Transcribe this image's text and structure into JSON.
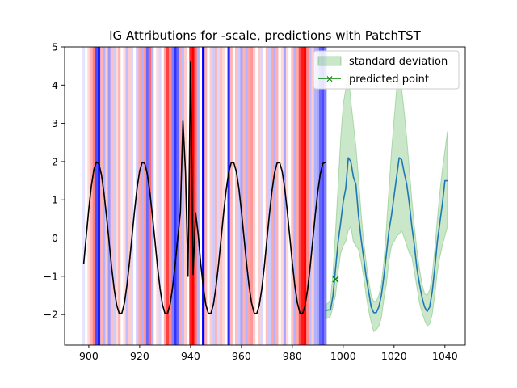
{
  "chart_data": {
    "type": "line",
    "title": "IG Attributions for -scale, predictions with PatchTST",
    "xlabel": "",
    "ylabel": "",
    "xlim": [
      890.5,
      1048
    ],
    "ylim": [
      -2.8,
      5.0
    ],
    "xticks": [
      900,
      920,
      940,
      960,
      980,
      1000,
      1020,
      1040
    ],
    "yticks": [
      -2,
      -1,
      0,
      1,
      2,
      3,
      4,
      5
    ],
    "grid": false,
    "legend_position": "top-right",
    "legend": [
      {
        "label": "standard deviation",
        "kind": "patch",
        "color": "#2ca02c"
      },
      {
        "label": "predicted point",
        "kind": "line-x",
        "color": "#008000"
      }
    ],
    "attribution_bands": [
      {
        "x": 898,
        "value": -0.1
      },
      {
        "x": 900,
        "value": 0.15
      },
      {
        "x": 901,
        "value": 0.3
      },
      {
        "x": 902,
        "value": 0.5
      },
      {
        "x": 903,
        "value": -0.7
      },
      {
        "x": 904,
        "value": -0.9
      },
      {
        "x": 905,
        "value": 0.3
      },
      {
        "x": 906,
        "value": -0.3
      },
      {
        "x": 907,
        "value": 0.2
      },
      {
        "x": 908,
        "value": -0.4
      },
      {
        "x": 909,
        "value": 0.25
      },
      {
        "x": 910,
        "value": -0.2
      },
      {
        "x": 911,
        "value": 0.15
      },
      {
        "x": 912,
        "value": 0.3
      },
      {
        "x": 914,
        "value": 0.15
      },
      {
        "x": 915,
        "value": -0.25
      },
      {
        "x": 916,
        "value": 0.2
      },
      {
        "x": 917,
        "value": -0.15
      },
      {
        "x": 919,
        "value": -0.2
      },
      {
        "x": 920,
        "value": 0.35
      },
      {
        "x": 921,
        "value": -0.3
      },
      {
        "x": 922,
        "value": 0.4
      },
      {
        "x": 923,
        "value": -0.6
      },
      {
        "x": 924,
        "value": 0.6
      },
      {
        "x": 925,
        "value": -0.3
      },
      {
        "x": 927,
        "value": 0.15
      },
      {
        "x": 928,
        "value": -0.15
      },
      {
        "x": 930,
        "value": 0.35
      },
      {
        "x": 931,
        "value": 0.75
      },
      {
        "x": 932,
        "value": 0.45
      },
      {
        "x": 933,
        "value": -0.5
      },
      {
        "x": 934,
        "value": -0.8
      },
      {
        "x": 935,
        "value": -0.6
      },
      {
        "x": 936,
        "value": 0.35
      },
      {
        "x": 937,
        "value": -0.25
      },
      {
        "x": 938,
        "value": 0.2
      },
      {
        "x": 940,
        "value": 0.85
      },
      {
        "x": 941,
        "value": 1.0
      },
      {
        "x": 942,
        "value": 0.55
      },
      {
        "x": 943,
        "value": -0.3
      },
      {
        "x": 945,
        "value": -1.0
      },
      {
        "x": 946,
        "value": 0.3
      },
      {
        "x": 948,
        "value": 0.2
      },
      {
        "x": 949,
        "value": -0.2
      },
      {
        "x": 950,
        "value": 0.3
      },
      {
        "x": 951,
        "value": -0.15
      },
      {
        "x": 952,
        "value": 0.25
      },
      {
        "x": 953,
        "value": 0.15
      },
      {
        "x": 955,
        "value": -0.85
      },
      {
        "x": 956,
        "value": 0.3
      },
      {
        "x": 958,
        "value": 0.25
      },
      {
        "x": 959,
        "value": -0.2
      },
      {
        "x": 960,
        "value": -0.35
      },
      {
        "x": 961,
        "value": 0.3
      },
      {
        "x": 962,
        "value": -0.3
      },
      {
        "x": 963,
        "value": 0.35
      },
      {
        "x": 964,
        "value": 0.4
      },
      {
        "x": 965,
        "value": 0.2
      },
      {
        "x": 967,
        "value": 0.2
      },
      {
        "x": 968,
        "value": -0.15
      },
      {
        "x": 970,
        "value": 0.25
      },
      {
        "x": 971,
        "value": -0.2
      },
      {
        "x": 972,
        "value": 0.35
      },
      {
        "x": 973,
        "value": -0.3
      },
      {
        "x": 974,
        "value": 0.3
      },
      {
        "x": 976,
        "value": 0.15
      },
      {
        "x": 977,
        "value": -0.35
      },
      {
        "x": 978,
        "value": 0.15
      },
      {
        "x": 980,
        "value": 0.25
      },
      {
        "x": 981,
        "value": -0.3
      },
      {
        "x": 982,
        "value": 0.35
      },
      {
        "x": 983,
        "value": 0.7
      },
      {
        "x": 984,
        "value": 0.9
      },
      {
        "x": 985,
        "value": 1.0
      },
      {
        "x": 986,
        "value": 0.45
      },
      {
        "x": 987,
        "value": -0.25
      },
      {
        "x": 988,
        "value": 0.2
      },
      {
        "x": 989,
        "value": -0.3
      },
      {
        "x": 990,
        "value": -0.35
      },
      {
        "x": 991,
        "value": -0.6
      },
      {
        "x": 992,
        "value": -0.7
      },
      {
        "x": 993,
        "value": -0.5
      }
    ],
    "series": [
      {
        "name": "",
        "color": "#000000",
        "x": [
          898,
          899,
          900,
          901,
          902,
          903,
          904,
          905,
          906,
          907,
          908,
          909,
          910,
          911,
          912,
          913,
          914,
          915,
          916,
          917,
          918,
          919,
          920,
          921,
          922,
          923,
          924,
          925,
          926,
          927,
          928,
          929,
          930,
          931,
          932,
          933,
          934,
          935,
          936,
          937,
          938,
          939,
          940,
          941,
          942,
          943,
          944,
          945,
          946,
          947,
          948,
          949,
          950,
          951,
          952,
          953,
          954,
          955,
          956,
          957,
          958,
          959,
          960,
          961,
          962,
          963,
          964,
          965,
          966,
          967,
          968,
          969,
          970,
          971,
          972,
          973,
          974,
          975,
          976,
          977,
          978,
          979,
          980,
          981,
          982,
          983,
          984,
          985,
          986,
          987,
          988,
          989,
          990,
          991,
          992,
          993
        ],
        "y": [
          -0.67,
          0.05,
          0.76,
          1.36,
          1.79,
          1.99,
          1.94,
          1.65,
          1.16,
          0.55,
          -0.11,
          -0.78,
          -1.35,
          -1.76,
          -1.98,
          -1.96,
          -1.7,
          -1.23,
          -0.63,
          0.05,
          0.72,
          1.32,
          1.76,
          1.98,
          1.95,
          1.68,
          1.2,
          0.59,
          -0.07,
          -0.74,
          -1.32,
          -1.75,
          -1.98,
          -1.96,
          -1.72,
          -1.26,
          -0.66,
          0.02,
          0.68,
          3.06,
          1.74,
          -1.0,
          4.6,
          -0.95,
          0.66,
          0.1,
          -0.67,
          -1.27,
          -1.74,
          -1.97,
          -1.97,
          -1.73,
          -1.28,
          -0.69,
          -0.02,
          0.66,
          1.26,
          1.72,
          1.97,
          1.97,
          1.74,
          1.3,
          0.7,
          0.02,
          -0.65,
          -1.25,
          -1.7,
          -1.96,
          -1.98,
          -1.76,
          -1.33,
          -0.74,
          -0.05,
          0.62,
          1.23,
          1.7,
          1.96,
          1.98,
          1.75,
          1.31,
          0.72,
          0.04,
          -0.64,
          -1.25,
          -1.7,
          -1.96,
          -1.98,
          -1.77,
          -1.35,
          -0.76,
          -0.08,
          0.6,
          1.21,
          1.68,
          1.95,
          1.98
        ]
      },
      {
        "name": "",
        "color": "#1f77b4",
        "x": [
          993,
          994,
          995,
          996,
          997,
          998,
          999,
          1000,
          1001,
          1002,
          1003,
          1004,
          1005,
          1006,
          1007,
          1008,
          1009,
          1010,
          1011,
          1012,
          1013,
          1014,
          1015,
          1016,
          1017,
          1018,
          1019,
          1020,
          1021,
          1022,
          1023,
          1024,
          1025,
          1026,
          1027,
          1028,
          1029,
          1030,
          1031,
          1032,
          1033,
          1034,
          1035,
          1036,
          1037,
          1038,
          1039,
          1040,
          1041
        ],
        "y": [
          -1.9,
          -1.88,
          -1.88,
          -1.5,
          -0.8,
          -0.1,
          0.4,
          0.95,
          1.3,
          2.1,
          2.0,
          1.6,
          1.4,
          0.6,
          0.0,
          -0.5,
          -1.0,
          -1.4,
          -1.8,
          -1.95,
          -1.95,
          -1.8,
          -1.5,
          -1.0,
          -0.4,
          0.2,
          0.6,
          1.1,
          1.6,
          2.1,
          2.05,
          1.7,
          1.4,
          0.9,
          0.3,
          -0.2,
          -0.8,
          -1.2,
          -1.55,
          -1.8,
          -1.92,
          -1.8,
          -1.4,
          -0.8,
          -0.1,
          0.4,
          0.9,
          1.5,
          1.5
        ]
      }
    ],
    "std_band": {
      "x": [
        993,
        994,
        995,
        996,
        997,
        998,
        999,
        1000,
        1001,
        1002,
        1003,
        1004,
        1005,
        1006,
        1007,
        1008,
        1009,
        1010,
        1011,
        1012,
        1013,
        1014,
        1015,
        1016,
        1017,
        1018,
        1019,
        1020,
        1021,
        1022,
        1023,
        1024,
        1025,
        1026,
        1027,
        1028,
        1029,
        1030,
        1031,
        1032,
        1033,
        1034,
        1035,
        1036,
        1037,
        1038,
        1039,
        1040,
        1041
      ],
      "upper": [
        -1.75,
        -1.7,
        -1.6,
        -0.9,
        0.2,
        1.4,
        2.6,
        3.5,
        3.9,
        4.3,
        3.6,
        3.0,
        2.4,
        1.6,
        0.7,
        -0.05,
        -0.6,
        -1.1,
        -1.5,
        -1.65,
        -1.65,
        -1.5,
        -1.2,
        -0.6,
        0.3,
        1.3,
        2.3,
        3.1,
        3.9,
        4.2,
        3.9,
        3.3,
        2.6,
        1.8,
        1.0,
        0.3,
        -0.3,
        -0.8,
        -1.2,
        -1.45,
        -1.5,
        -1.35,
        -0.95,
        -0.3,
        0.5,
        1.2,
        1.8,
        2.3,
        2.8
      ],
      "lower": [
        -2.1,
        -2.1,
        -2.05,
        -1.8,
        -1.5,
        -0.9,
        -0.4,
        -0.2,
        -0.1,
        0.2,
        0.3,
        -0.1,
        -0.2,
        -0.3,
        -0.6,
        -1.0,
        -1.5,
        -1.9,
        -2.2,
        -2.45,
        -2.4,
        -2.3,
        -2.1,
        -1.6,
        -1.2,
        -0.6,
        -0.2,
        -0.1,
        0.05,
        0.1,
        0.2,
        0.0,
        -0.2,
        -0.4,
        -0.5,
        -0.9,
        -1.3,
        -1.7,
        -1.95,
        -2.15,
        -2.3,
        -2.25,
        -2.0,
        -1.5,
        -0.9,
        -0.5,
        -0.2,
        0.05,
        0.3
      ]
    },
    "predicted_point": {
      "x": 997,
      "y": -1.08,
      "marker": "x",
      "color": "#008000"
    }
  }
}
